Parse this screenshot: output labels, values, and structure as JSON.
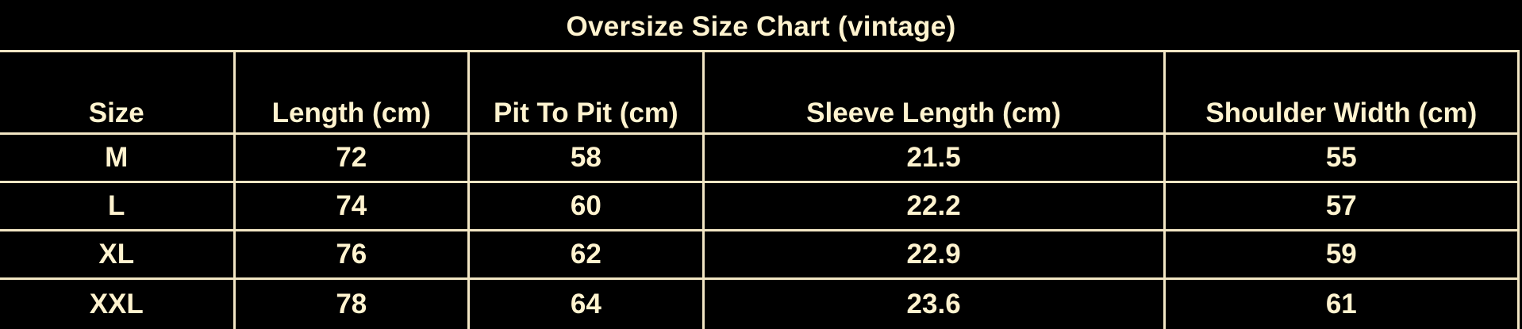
{
  "title": "Oversize Size Chart (vintage)",
  "colors": {
    "background": "#000000",
    "text": "#fff3cf",
    "grid": "#f2e6c4"
  },
  "table": {
    "headers": [
      "Size",
      "Length (cm)",
      "Pit To Pit (cm)",
      "Sleeve Length (cm)",
      "Shoulder Width (cm)"
    ],
    "rows": [
      [
        "M",
        "72",
        "58",
        "21.5",
        "55"
      ],
      [
        "L",
        "74",
        "60",
        "22.2",
        "57"
      ],
      [
        "XL",
        "76",
        "62",
        "22.9",
        "59"
      ],
      [
        "XXL",
        "78",
        "64",
        "23.6",
        "61"
      ]
    ]
  }
}
